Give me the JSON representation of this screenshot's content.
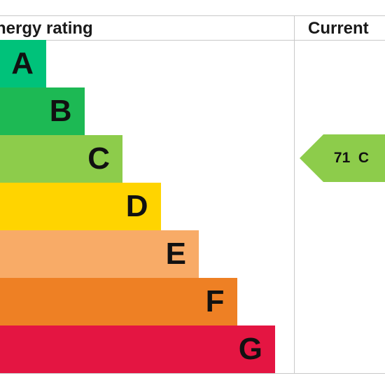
{
  "header": {
    "rating_label": "nergy rating",
    "current_label": "Current"
  },
  "chart_data": {
    "type": "bar",
    "categories": [
      "A",
      "B",
      "C",
      "D",
      "E",
      "F",
      "G"
    ],
    "values": [
      1,
      2,
      3,
      4,
      5,
      6,
      7
    ],
    "colors": [
      "#00c27a",
      "#1db954",
      "#8dcc4b",
      "#ffd400",
      "#f8ab67",
      "#ee8024",
      "#e41542"
    ],
    "current": {
      "value": 71,
      "band": "C",
      "label": "71  C",
      "color": "#8dcc4b"
    }
  }
}
